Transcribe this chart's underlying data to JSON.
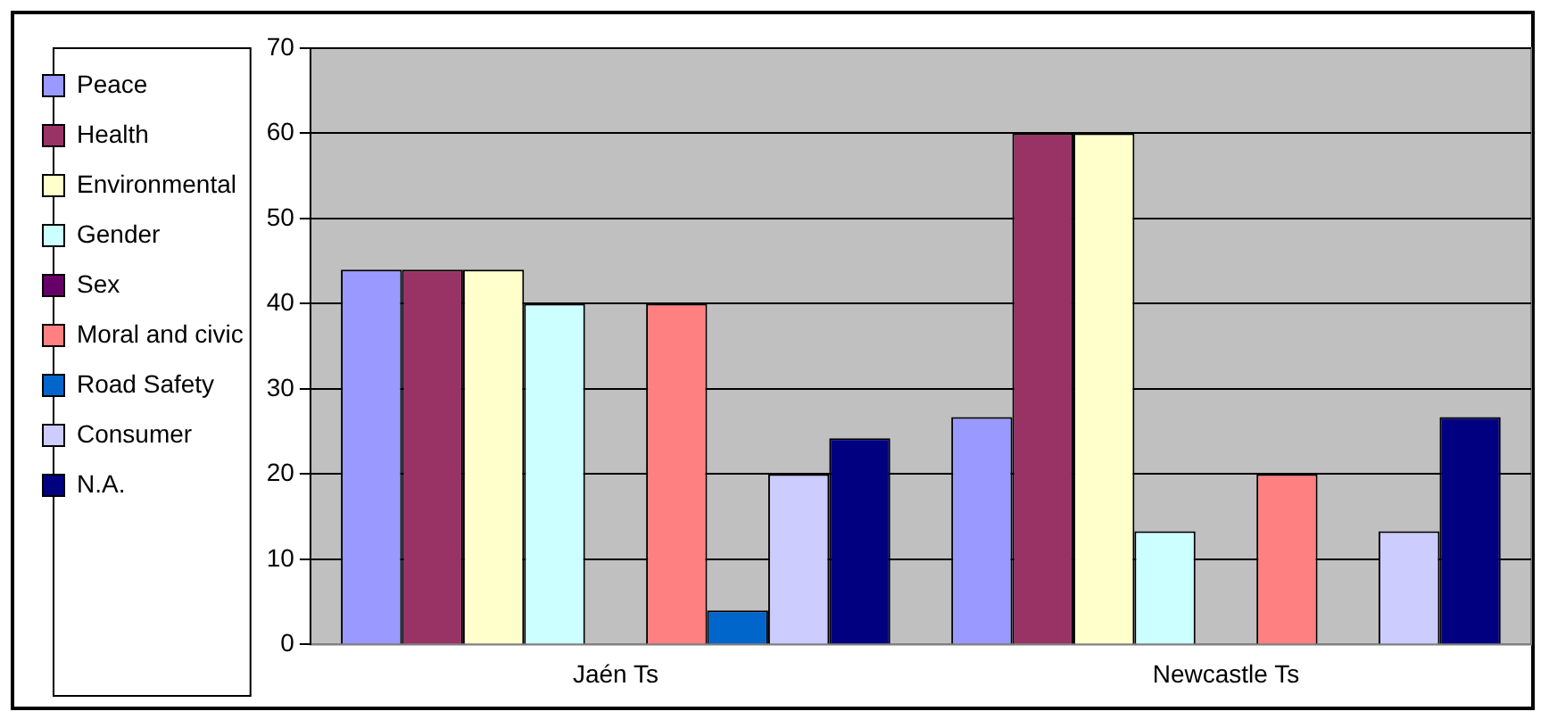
{
  "chart_data": {
    "type": "bar",
    "categories": [
      "Jaén Ts",
      "Newcastle Ts"
    ],
    "series": [
      {
        "name": "Peace",
        "color": "#9999ff",
        "values": [
          44,
          26.7
        ]
      },
      {
        "name": "Health",
        "color": "#993366",
        "values": [
          44,
          60
        ]
      },
      {
        "name": "Environmental",
        "color": "#ffffcc",
        "values": [
          44,
          60
        ]
      },
      {
        "name": "Gender",
        "color": "#ccffff",
        "values": [
          40,
          13.3
        ]
      },
      {
        "name": "Sex",
        "color": "#660066",
        "values": [
          0,
          0
        ]
      },
      {
        "name": "Moral and civic",
        "color": "#ff8080",
        "values": [
          40,
          20
        ]
      },
      {
        "name": "Road Safety",
        "color": "#0066cc",
        "values": [
          4,
          0
        ]
      },
      {
        "name": "Consumer",
        "color": "#ccccff",
        "values": [
          20,
          13.3
        ]
      },
      {
        "name": "N.A.",
        "color": "#000080",
        "values": [
          24.2,
          26.7
        ]
      }
    ],
    "ylim": [
      0,
      70
    ],
    "yticks": [
      0,
      10,
      20,
      30,
      40,
      50,
      60,
      70
    ],
    "grid": "y",
    "legend": "left"
  }
}
